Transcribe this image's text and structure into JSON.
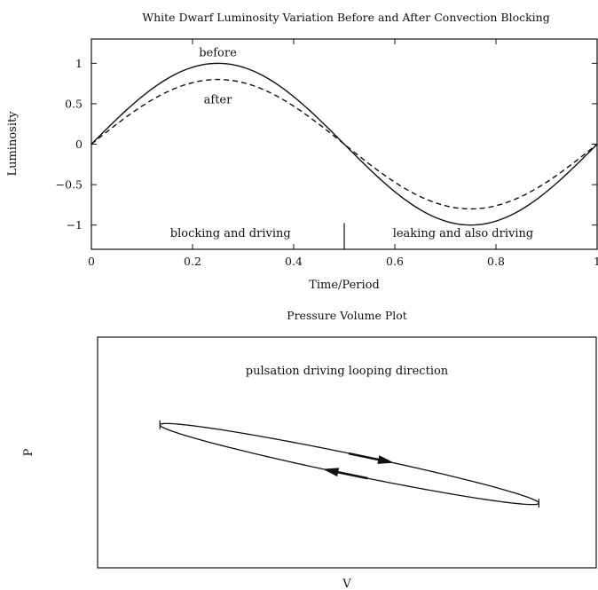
{
  "chart_data": [
    {
      "type": "line",
      "title": "White Dwarf Luminosity Variation Before and After Convection Blocking",
      "xlabel": "Time/Period",
      "ylabel": "Luminosity",
      "xlim": [
        0,
        1
      ],
      "ylim": [
        -1.3,
        1.3
      ],
      "x_ticks": [
        0,
        0.2,
        0.4,
        0.6,
        0.8,
        1
      ],
      "x_tick_labels": [
        "0",
        "0.2",
        "0.4",
        "0.6",
        "0.8",
        "1"
      ],
      "y_ticks": [
        1,
        0.5,
        0,
        -0.5,
        -1
      ],
      "y_tick_labels": [
        "1",
        "0.5",
        "0",
        "−0.5",
        "−1"
      ],
      "grid": false,
      "series": [
        {
          "name": "before",
          "style": "solid",
          "color": "#111111",
          "x": [
            0,
            0.05,
            0.1,
            0.15,
            0.2,
            0.25,
            0.3,
            0.35,
            0.4,
            0.45,
            0.5,
            0.55,
            0.6,
            0.65,
            0.7,
            0.75,
            0.8,
            0.85,
            0.9,
            0.95,
            1
          ],
          "y": [
            0,
            0.31,
            0.59,
            0.81,
            0.95,
            1.0,
            0.95,
            0.81,
            0.59,
            0.31,
            0.0,
            -0.31,
            -0.59,
            -0.81,
            -0.95,
            -1.0,
            -0.95,
            -0.81,
            -0.59,
            -0.31,
            0
          ]
        },
        {
          "name": "after",
          "style": "dashed",
          "color": "#111111",
          "x": [
            0,
            0.05,
            0.1,
            0.15,
            0.2,
            0.25,
            0.3,
            0.35,
            0.4,
            0.45,
            0.5,
            0.55,
            0.6,
            0.65,
            0.7,
            0.75,
            0.8,
            0.85,
            0.9,
            0.95,
            1
          ],
          "y": [
            0,
            0.25,
            0.47,
            0.65,
            0.76,
            0.8,
            0.76,
            0.65,
            0.47,
            0.25,
            0.0,
            -0.25,
            -0.47,
            -0.65,
            -0.76,
            -0.8,
            -0.76,
            -0.65,
            -0.47,
            -0.25,
            0
          ]
        }
      ],
      "annotations": [
        {
          "text": "before",
          "x": 0.25,
          "y": 1.13
        },
        {
          "text": "after",
          "x": 0.25,
          "y": 0.55
        },
        {
          "text": "blocking and driving",
          "x": 0.275,
          "y": -1.1
        },
        {
          "text": "leaking and also driving",
          "x": 0.735,
          "y": -1.1
        }
      ],
      "divider_x": 0.5,
      "divider_y_range": [
        -1.3,
        -1.02
      ]
    },
    {
      "type": "line",
      "title": "Pressure Volume Plot",
      "xlabel": "V",
      "ylabel": "P",
      "annotation": "pulsation driving looping direction",
      "axis_ticks": false,
      "xlim": [
        0,
        1
      ],
      "ylim": [
        0,
        1
      ],
      "loop": {
        "left_end": [
          0.125,
          0.62
        ],
        "right_end": [
          0.885,
          0.28
        ],
        "half_width": 0.045,
        "upper_direction": "right",
        "lower_direction": "left"
      }
    }
  ]
}
